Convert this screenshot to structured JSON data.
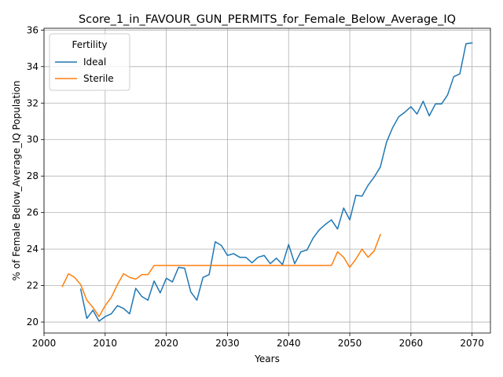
{
  "chart_data": {
    "type": "line",
    "title": "Score_1_in_FAVOUR_GUN_PERMITS_for_Female_Below_Average_IQ",
    "xlabel": "Years",
    "ylabel": "% of Female Below_Average_IQ Population",
    "xlim": [
      2000,
      2073
    ],
    "ylim": [
      19.4,
      36.1
    ],
    "x_ticks": [
      2000,
      2010,
      2020,
      2030,
      2040,
      2050,
      2060,
      2070
    ],
    "y_ticks": [
      20,
      22,
      24,
      26,
      28,
      30,
      32,
      34,
      36
    ],
    "grid": true,
    "legend": {
      "title": "Fertility",
      "placement": "top-left"
    },
    "series": [
      {
        "name": "Ideal",
        "color": "#1f77b4",
        "x": [
          2006,
          2007,
          2008,
          2009,
          2010,
          2011,
          2012,
          2013,
          2014,
          2015,
          2016,
          2017,
          2018,
          2019,
          2020,
          2021,
          2022,
          2023,
          2024,
          2025,
          2026,
          2027,
          2028,
          2029,
          2030,
          2031,
          2032,
          2033,
          2034,
          2035,
          2036,
          2037,
          2038,
          2039,
          2040,
          2041,
          2042,
          2043,
          2044,
          2045,
          2046,
          2047,
          2048,
          2049,
          2050,
          2051,
          2052,
          2053,
          2054,
          2055,
          2056,
          2057,
          2058,
          2059,
          2060,
          2061,
          2062,
          2063,
          2064,
          2065,
          2066,
          2067,
          2068,
          2069,
          2070
        ],
        "values": [
          21.8,
          20.2,
          20.65,
          20.05,
          20.3,
          20.45,
          20.9,
          20.75,
          20.45,
          21.85,
          21.4,
          21.2,
          22.25,
          21.6,
          22.4,
          22.2,
          23.0,
          22.95,
          21.65,
          21.2,
          22.45,
          22.6,
          24.4,
          24.2,
          23.65,
          23.75,
          23.55,
          23.55,
          23.25,
          23.55,
          23.65,
          23.2,
          23.5,
          23.15,
          24.25,
          23.2,
          23.85,
          23.95,
          24.6,
          25.05,
          25.35,
          25.6,
          25.1,
          26.25,
          25.6,
          26.95,
          26.9,
          27.5,
          27.95,
          28.5,
          29.85,
          30.65,
          31.25,
          31.5,
          31.8,
          31.4,
          32.1,
          31.3,
          31.95,
          31.95,
          32.45,
          33.45,
          33.6,
          35.25,
          35.3
        ]
      },
      {
        "name": "Sterile",
        "color": "#ff7f0e",
        "x": [
          2003,
          2004,
          2005,
          2006,
          2007,
          2008,
          2009,
          2010,
          2011,
          2012,
          2013,
          2014,
          2015,
          2016,
          2017,
          2018,
          2019,
          2020,
          2021,
          2022,
          2023,
          2024,
          2025,
          2026,
          2027,
          2028,
          2029,
          2030,
          2031,
          2032,
          2033,
          2034,
          2035,
          2036,
          2037,
          2038,
          2039,
          2040,
          2041,
          2042,
          2043,
          2044,
          2045,
          2046,
          2047,
          2048,
          2049,
          2050,
          2051,
          2052,
          2053,
          2054,
          2055
        ],
        "values": [
          21.95,
          22.65,
          22.45,
          22.05,
          21.2,
          20.8,
          20.3,
          20.9,
          21.35,
          22.05,
          22.65,
          22.45,
          22.35,
          22.6,
          22.6,
          23.1,
          23.1,
          23.1,
          23.1,
          23.1,
          23.1,
          23.1,
          23.1,
          23.1,
          23.1,
          23.1,
          23.1,
          23.1,
          23.1,
          23.1,
          23.1,
          23.1,
          23.1,
          23.1,
          23.1,
          23.1,
          23.1,
          23.1,
          23.1,
          23.1,
          23.1,
          23.1,
          23.1,
          23.1,
          23.1,
          23.85,
          23.55,
          23.0,
          23.45,
          24.0,
          23.55,
          23.9,
          24.8
        ]
      }
    ]
  }
}
